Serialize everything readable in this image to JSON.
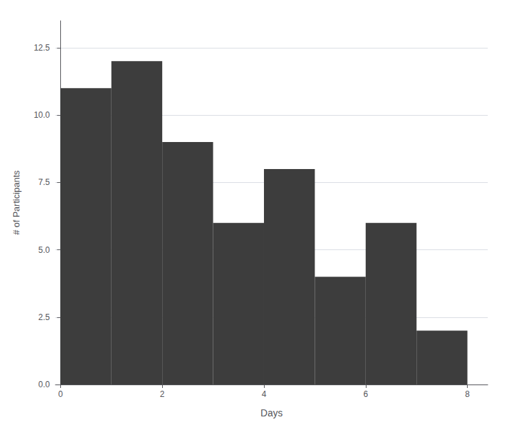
{
  "chart_data": {
    "type": "histogram",
    "bins": [
      0,
      1,
      2,
      3,
      4,
      5,
      6,
      7,
      8
    ],
    "values": [
      11,
      12,
      9,
      6,
      8,
      4,
      6,
      2
    ],
    "color": "#3d3d3d",
    "xlabel": "Days",
    "ylabel": "# of Participants",
    "xlim": [
      -0.1,
      8.4
    ],
    "xticks": [
      0,
      2,
      4,
      6,
      8
    ],
    "ylim": [
      0,
      13.5
    ],
    "yticks": [
      {
        "value": 0,
        "label": "0.0"
      },
      2.5,
      {
        "value": 5,
        "label": "5.0"
      },
      7.5,
      {
        "value": 10,
        "label": "10.0"
      },
      12.5
    ],
    "grid": "y"
  }
}
